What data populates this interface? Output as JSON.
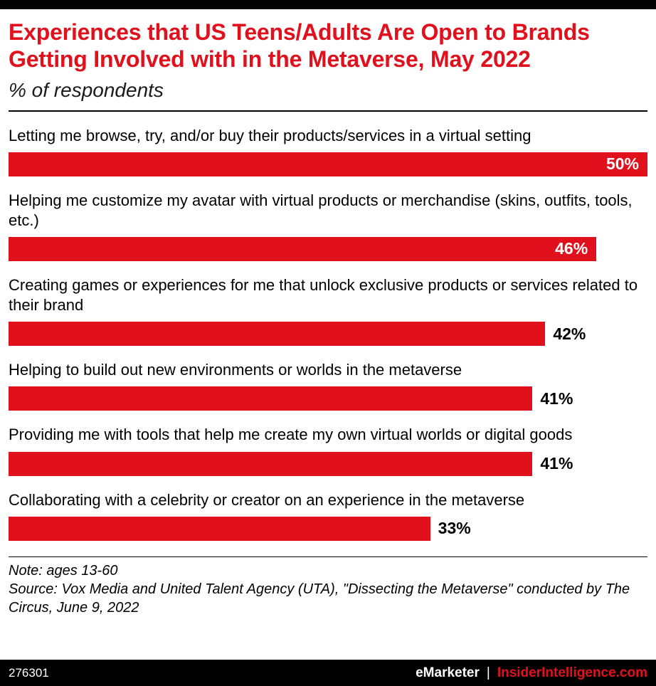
{
  "chart_data": {
    "type": "bar",
    "orientation": "horizontal",
    "title": "Experiences that US Teens/Adults Are Open to Brands Getting Involved with in the Metaverse, May 2022",
    "subtitle": "% of respondents",
    "categories": [
      "Letting me browse, try, and/or buy their products/services in a virtual setting",
      "Helping me customize my avatar with virtual products or merchandise (skins, outfits, tools, etc.)",
      "Creating games or experiences for me that unlock exclusive products or services related to their brand",
      "Helping to build out new environments or worlds in the metaverse",
      "Providing me with tools that help me create my own virtual worlds or digital goods",
      "Collaborating with a celebrity or creator on an experience in the metaverse"
    ],
    "values": [
      50,
      46,
      42,
      41,
      41,
      33
    ],
    "value_labels": [
      "50%",
      "46%",
      "42%",
      "41%",
      "41%",
      "33%"
    ],
    "label_inside": [
      true,
      true,
      false,
      false,
      false,
      false
    ],
    "xlim": [
      0,
      50
    ],
    "bar_color": "#e0111c",
    "grid": false,
    "legend": false
  },
  "footer": {
    "note": "Note: ages 13-60",
    "source": "Source: Vox Media and United Talent Agency (UTA), \"Dissecting the Metaverse\" conducted by The Circus, June 9, 2022",
    "chart_id": "276301",
    "brand": "eMarketer",
    "separator": "|",
    "site": "InsiderIntelligence.com"
  },
  "colors": {
    "accent_red": "#e0111c",
    "bar_red": "#e0111c",
    "black": "#000000",
    "white": "#ffffff"
  }
}
